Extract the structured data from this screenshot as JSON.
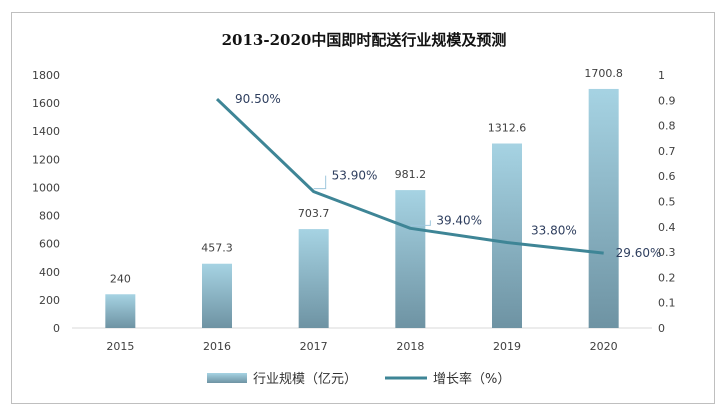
{
  "chart_data": {
    "type": "bar+line",
    "title": "2013-2020中国即时配送行业规模及预测",
    "categories": [
      "2015",
      "2016",
      "2017",
      "2018",
      "2019",
      "2020"
    ],
    "series": [
      {
        "name": "行业规模（亿元）",
        "type": "bar",
        "axis": "left",
        "values": [
          240,
          457.3,
          703.7,
          981.2,
          1312.6,
          1700.8
        ],
        "labels": [
          "240",
          "457.3",
          "703.7",
          "981.2",
          "1312.6",
          "1700.8"
        ],
        "color": "#8fbfd0"
      },
      {
        "name": "增长率（%）",
        "type": "line",
        "axis": "right",
        "values": [
          null,
          0.905,
          0.539,
          0.394,
          0.338,
          0.296
        ],
        "labels": [
          "",
          "90.50%",
          "53.90%",
          "39.40%",
          "33.80%",
          "29.60%"
        ],
        "color": "#3e8596"
      }
    ],
    "y_left": {
      "min": 0,
      "max": 1800,
      "ticks": [
        "0",
        "200",
        "400",
        "600",
        "800",
        "1000",
        "1200",
        "1400",
        "1600",
        "1800"
      ]
    },
    "y_right": {
      "min": 0,
      "max": 1,
      "ticks": [
        "0",
        "0.1",
        "0.2",
        "0.3",
        "0.4",
        "0.5",
        "0.6",
        "0.7",
        "0.8",
        "0.9",
        "1"
      ]
    },
    "grid": false,
    "legend": "bottom"
  }
}
